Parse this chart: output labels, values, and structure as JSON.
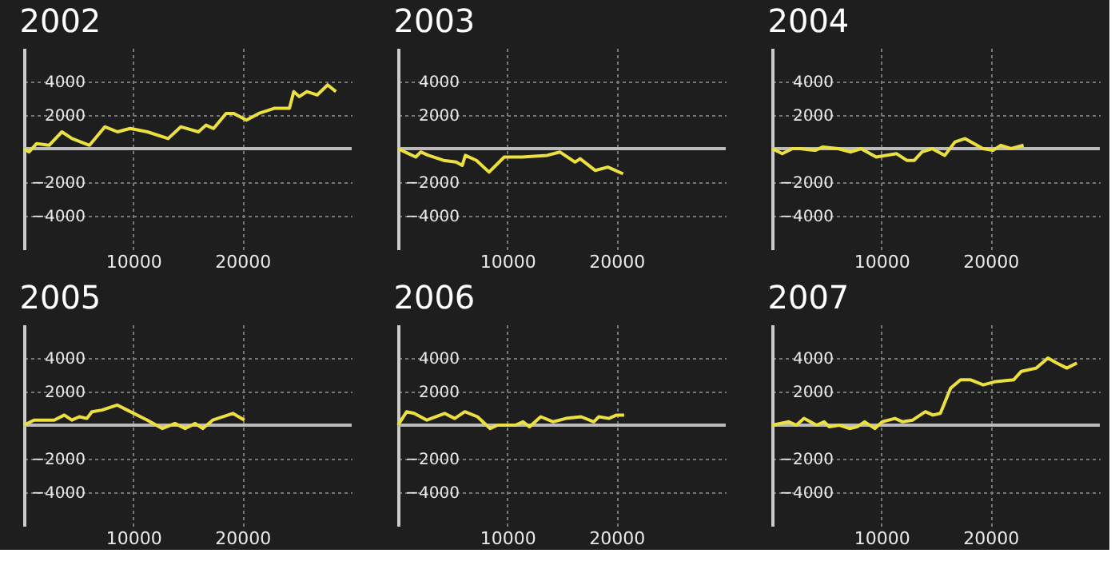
{
  "chart_data": [
    {
      "type": "line",
      "title": "2002",
      "xlim": [
        0,
        30000
      ],
      "xticks": [
        10000,
        20000
      ],
      "ylim": [
        -6000,
        6000
      ],
      "yticks": [
        -4000,
        -2000,
        2000,
        4000
      ],
      "grid": true,
      "line_style": "solid",
      "ref_lines": [
        {
          "axis": "y",
          "value": 0
        }
      ],
      "series": [
        {
          "color": "#ece040",
          "x": [
            0,
            460,
            1160,
            2300,
            3470,
            4400,
            6000,
            7400,
            8560,
            9720,
            11300,
            13200,
            14350,
            15970,
            16670,
            17360,
            18500,
            19200,
            20370,
            21500,
            22900,
            24300,
            24700,
            25200,
            25900,
            26850,
            27800,
            28560
          ],
          "values": [
            0,
            -200,
            300,
            200,
            1000,
            600,
            200,
            1300,
            1000,
            1200,
            1000,
            600,
            1300,
            1000,
            1400,
            1200,
            2100,
            2100,
            1700,
            2100,
            2400,
            2400,
            3400,
            3100,
            3400,
            3200,
            3800,
            3400
          ]
        }
      ]
    },
    {
      "type": "line",
      "title": "2003",
      "xlim": [
        0,
        30000
      ],
      "xticks": [
        10000,
        20000
      ],
      "ylim": [
        -6000,
        6000
      ],
      "yticks": [
        -4000,
        -2000,
        2000,
        4000
      ],
      "grid": true,
      "line_style": "solid",
      "ref_lines": [
        {
          "axis": "y",
          "value": 0
        }
      ],
      "series": [
        {
          "color": "#ece040",
          "x": [
            0,
            1620,
            2080,
            2780,
            4170,
            5320,
            5880,
            6160,
            7180,
            8330,
            9720,
            11340,
            13650,
            14810,
            16200,
            16670,
            18060,
            19200,
            20600
          ],
          "values": [
            0,
            -500,
            -200,
            -400,
            -700,
            -800,
            -1000,
            -400,
            -700,
            -1400,
            -500,
            -500,
            -400,
            -200,
            -800,
            -600,
            -1300,
            -1100,
            -1500
          ]
        }
      ]
    },
    {
      "type": "line",
      "title": "2004",
      "xlim": [
        0,
        30000
      ],
      "xticks": [
        10000,
        20000
      ],
      "ylim": [
        -6000,
        6000
      ],
      "yticks": [
        -4000,
        -2000,
        2000,
        4000
      ],
      "grid": true,
      "line_style": "solid",
      "ref_lines": [
        {
          "axis": "y",
          "value": 0
        }
      ],
      "series": [
        {
          "color": "#ece040",
          "x": [
            0,
            930,
            1860,
            2560,
            3950,
            4650,
            6050,
            7210,
            8140,
            9530,
            11400,
            12330,
            13020,
            13720,
            14650,
            15810,
            16740,
            17670,
            19300,
            20230,
            20930,
            21860,
            23020
          ],
          "values": [
            0,
            -300,
            0,
            0,
            -100,
            100,
            0,
            -200,
            0,
            -500,
            -300,
            -700,
            -700,
            -200,
            0,
            -400,
            400,
            600,
            0,
            -100,
            200,
            0,
            200
          ]
        }
      ]
    },
    {
      "type": "line",
      "title": "2005",
      "xlim": [
        0,
        30000
      ],
      "xticks": [
        10000,
        20000
      ],
      "ylim": [
        -6000,
        6000
      ],
      "yticks": [
        -4000,
        -2000,
        2000,
        4000
      ],
      "grid": true,
      "line_style": "solid",
      "ref_lines": [
        {
          "axis": "y",
          "value": 0
        }
      ],
      "series": [
        {
          "color": "#ece040",
          "x": [
            0,
            920,
            2760,
            3690,
            4380,
            5070,
            5760,
            6220,
            7140,
            8530,
            9450,
            11290,
            12670,
            13820,
            14750,
            15670,
            16360,
            17280,
            19120,
            20180
          ],
          "values": [
            0,
            300,
            300,
            600,
            300,
            500,
            400,
            800,
            900,
            1200,
            900,
            300,
            -200,
            100,
            -200,
            100,
            -200,
            300,
            700,
            300
          ]
        }
      ]
    },
    {
      "type": "line",
      "title": "2006",
      "xlim": [
        0,
        30000
      ],
      "xticks": [
        10000,
        20000
      ],
      "ylim": [
        -6000,
        6000
      ],
      "yticks": [
        -4000,
        -2000,
        2000,
        4000
      ],
      "grid": true,
      "line_style": "solid",
      "ref_lines": [
        {
          "axis": "y",
          "value": 0
        }
      ],
      "series": [
        {
          "color": "#ece040",
          "x": [
            0,
            790,
            1480,
            2640,
            4260,
            5190,
            6110,
            7270,
            8430,
            9120,
            10740,
            11440,
            12040,
            13060,
            14210,
            15370,
            16760,
            17920,
            18380,
            19300,
            20000,
            20700
          ],
          "values": [
            0,
            800,
            700,
            300,
            700,
            400,
            800,
            500,
            -200,
            0,
            0,
            200,
            -100,
            500,
            200,
            400,
            500,
            200,
            500,
            400,
            600,
            600
          ]
        }
      ]
    },
    {
      "type": "line",
      "title": "2007",
      "xlim": [
        0,
        30000
      ],
      "xticks": [
        10000,
        20000
      ],
      "ylim": [
        -6000,
        6000
      ],
      "yticks": [
        -4000,
        -2000,
        2000,
        4000
      ],
      "grid": true,
      "line_style": "solid",
      "ref_lines": [
        {
          "axis": "y",
          "value": 0
        }
      ],
      "series": [
        {
          "color": "#ece040",
          "x": [
            0,
            1530,
            2220,
            2920,
            4070,
            4770,
            5230,
            6160,
            7080,
            7780,
            8470,
            9400,
            10090,
            11250,
            11940,
            12870,
            14030,
            14720,
            15400,
            16340,
            17250,
            18180,
            19330,
            20480,
            22110,
            22800,
            24190,
            25250,
            26050,
            26980,
            27900
          ],
          "values": [
            0,
            200,
            0,
            400,
            0,
            200,
            -100,
            0,
            -200,
            -100,
            200,
            -200,
            200,
            400,
            200,
            300,
            800,
            600,
            700,
            2200,
            2700,
            2700,
            2400,
            2600,
            2700,
            3200,
            3400,
            4000,
            3700,
            3400,
            3700
          ]
        }
      ]
    }
  ]
}
